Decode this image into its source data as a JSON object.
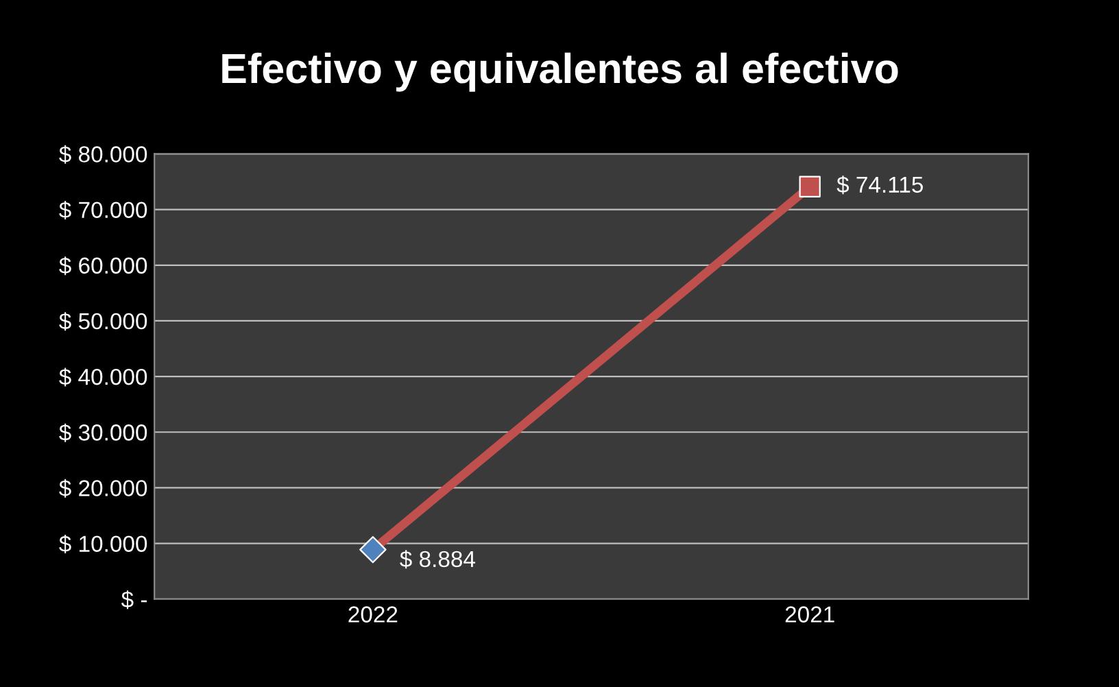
{
  "chart_data": {
    "type": "line",
    "title": "Efectivo y equivalentes al efectivo",
    "categories": [
      "2022",
      "2021"
    ],
    "series": [
      {
        "color": "#c0504d",
        "colors": [
          "#4f81bd",
          "#c0504d"
        ],
        "values": [
          8884,
          74115
        ],
        "value_labels": [
          "$ 8.884",
          "$ 74.115"
        ]
      }
    ],
    "marker": [
      "diamond",
      "square"
    ],
    "ylim": [
      0,
      80000
    ],
    "yticks": [
      {
        "value": 0,
        "label": "$ -"
      },
      {
        "value": 10000,
        "label": "$ 10.000"
      },
      {
        "value": 20000,
        "label": "$ 20.000"
      },
      {
        "value": 30000,
        "label": "$ 30.000"
      },
      {
        "value": 40000,
        "label": "$ 40.000"
      },
      {
        "value": 50000,
        "label": "$ 50.000"
      },
      {
        "value": 60000,
        "label": "$ 60.000"
      },
      {
        "value": 70000,
        "label": "$ 70.000"
      },
      {
        "value": 80000,
        "label": "$ 80.000"
      }
    ],
    "grid": "y",
    "legend": false
  }
}
